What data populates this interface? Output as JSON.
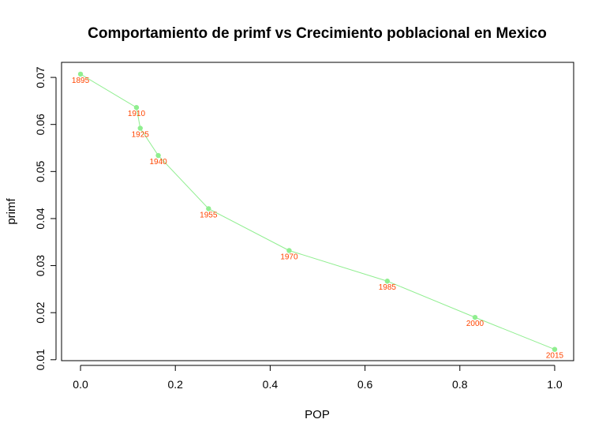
{
  "chart_data": {
    "type": "line",
    "title": "Comportamiento de primf vs Crecimiento poblacional en Mexico",
    "xlabel": "POP",
    "ylabel": "primf",
    "xlim": [
      -0.04,
      1.04
    ],
    "ylim": [
      0.0098,
      0.0732
    ],
    "x_ticks": [
      0.0,
      0.2,
      0.4,
      0.6,
      0.8,
      1.0
    ],
    "x_tick_labels": [
      "0.0",
      "0.2",
      "0.4",
      "0.6",
      "0.8",
      "1.0"
    ],
    "y_ticks": [
      0.01,
      0.02,
      0.03,
      0.04,
      0.05,
      0.06,
      0.07
    ],
    "y_tick_labels": [
      "0.01",
      "0.02",
      "0.03",
      "0.04",
      "0.05",
      "0.06",
      "0.07"
    ],
    "grid": false,
    "series": [
      {
        "x": [
          0.0,
          0.118,
          0.126,
          0.164,
          0.27,
          0.44,
          0.647,
          0.832,
          1.0
        ],
        "y": [
          0.0707,
          0.0636,
          0.0592,
          0.0534,
          0.0421,
          0.0332,
          0.0267,
          0.019,
          0.0122
        ],
        "point_labels": [
          "1895",
          "1910",
          "1925",
          "1940",
          "1955",
          "1970",
          "1985",
          "2000",
          "2015"
        ],
        "line_color": "#90ee90",
        "marker_color": "#90ee90",
        "label_color": "#ff4500"
      }
    ]
  }
}
